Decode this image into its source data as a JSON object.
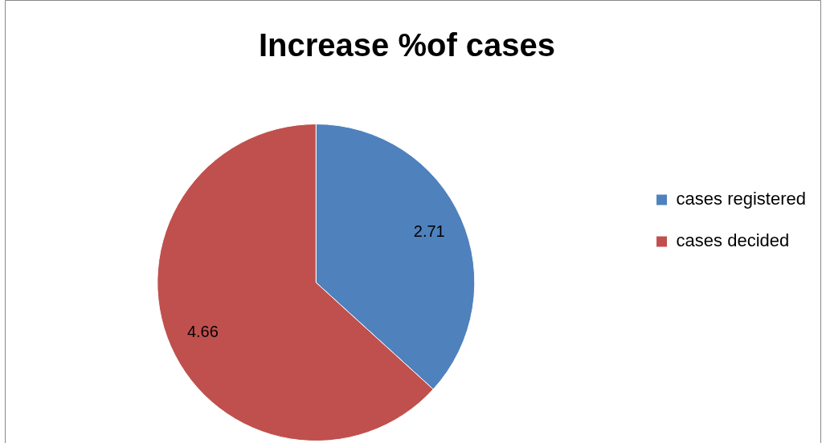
{
  "chart_data": {
    "type": "pie",
    "title": "Increase %of cases",
    "categories": [
      "cases registered",
      "cases decided"
    ],
    "values": [
      2.71,
      4.66
    ],
    "colors": [
      "#4f81bd",
      "#c0504d"
    ],
    "data_labels": true,
    "legend": "right"
  }
}
